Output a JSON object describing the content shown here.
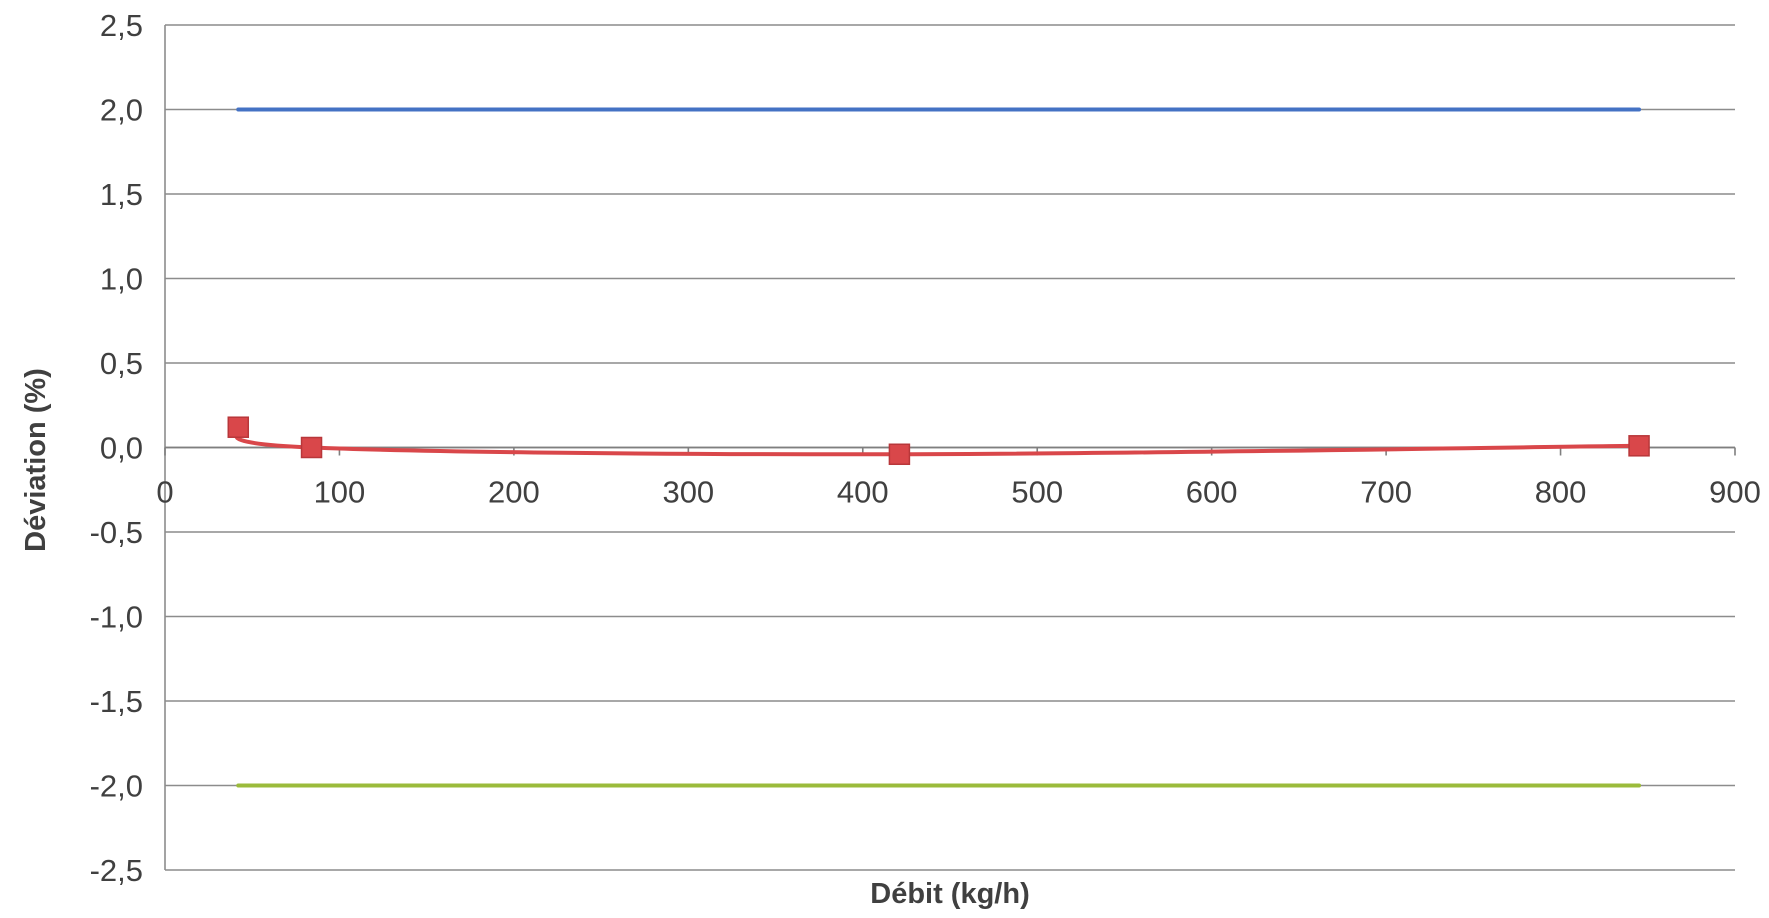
{
  "chart_data": {
    "type": "line",
    "title": "",
    "xlabel": "Débit (kg/h)",
    "ylabel": "Déviation (%)",
    "xlim": [
      0,
      900
    ],
    "ylim": [
      -2.5,
      2.5
    ],
    "x_ticks": [
      "0",
      "100",
      "200",
      "300",
      "400",
      "500",
      "600",
      "700",
      "800",
      "900"
    ],
    "y_ticks": [
      "2,5",
      "2,0",
      "1,5",
      "1,0",
      "0,5",
      "0,0",
      "-0,5",
      "-1,0",
      "-1,5",
      "-2,0",
      "-2,5"
    ],
    "grid": true,
    "legend": "none",
    "series": [
      {
        "color": "#4472c4",
        "marker": "none",
        "x": [
          42,
          845
        ],
        "y": [
          2.0,
          2.0
        ]
      },
      {
        "color": "#d9474a",
        "marker": "square",
        "x": [
          42,
          84,
          421,
          845
        ],
        "y": [
          0.12,
          0.0,
          -0.04,
          0.01
        ]
      },
      {
        "color": "#9bbb3b",
        "marker": "none",
        "x": [
          42,
          845
        ],
        "y": [
          -2.0,
          -2.0
        ]
      }
    ]
  }
}
